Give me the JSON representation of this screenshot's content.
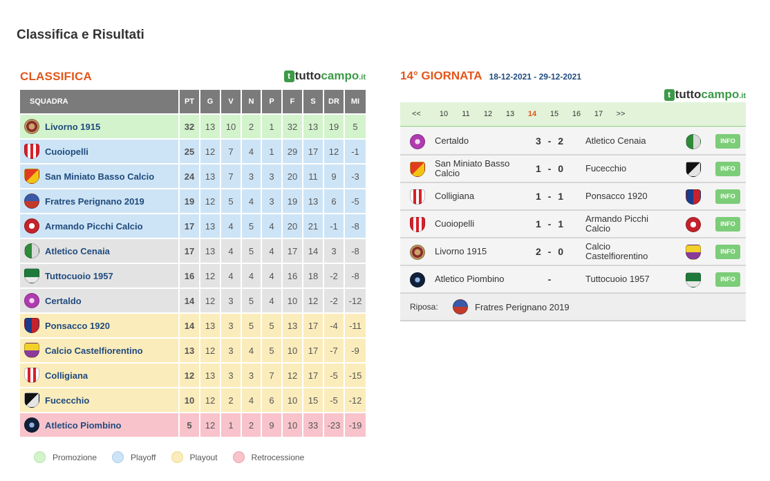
{
  "page_title": "Classifica e Risultati",
  "brand": {
    "part1": "tutto",
    "part2": "campo",
    "tld": ".it",
    "mark": "t"
  },
  "standings": {
    "title": "CLASSIFICA",
    "columns": [
      "SQUADRA",
      "PT",
      "G",
      "V",
      "N",
      "P",
      "F",
      "S",
      "DR",
      "MI"
    ],
    "rows": [
      {
        "team": "Livorno 1915",
        "zone": "promo",
        "crest": "livorno-crest",
        "stats": [
          "32",
          "13",
          "10",
          "2",
          "1",
          "32",
          "13",
          "19",
          "5"
        ]
      },
      {
        "team": "Cuoiopelli",
        "zone": "playoff",
        "crest": "cuoiopelli-crest",
        "stats": [
          "25",
          "12",
          "7",
          "4",
          "1",
          "29",
          "17",
          "12",
          "-1"
        ]
      },
      {
        "team": "San Miniato Basso Calcio",
        "zone": "playoff",
        "crest": "san-miniato-crest",
        "stats": [
          "24",
          "13",
          "7",
          "3",
          "3",
          "20",
          "11",
          "9",
          "-3"
        ]
      },
      {
        "team": "Fratres Perignano 2019",
        "zone": "playoff",
        "crest": "fratres-crest",
        "stats": [
          "19",
          "12",
          "5",
          "4",
          "3",
          "19",
          "13",
          "6",
          "-5"
        ]
      },
      {
        "team": "Armando Picchi Calcio",
        "zone": "playoff",
        "crest": "picchi-crest",
        "stats": [
          "17",
          "13",
          "4",
          "5",
          "4",
          "20",
          "21",
          "-1",
          "-8"
        ]
      },
      {
        "team": "Atletico Cenaia",
        "zone": "mid",
        "crest": "cenaia-crest",
        "stats": [
          "17",
          "13",
          "4",
          "5",
          "4",
          "17",
          "14",
          "3",
          "-8"
        ]
      },
      {
        "team": "Tuttocuoio 1957",
        "zone": "mid",
        "crest": "tuttocuoio-crest",
        "stats": [
          "16",
          "12",
          "4",
          "4",
          "4",
          "16",
          "18",
          "-2",
          "-8"
        ]
      },
      {
        "team": "Certaldo",
        "zone": "mid",
        "crest": "certaldo-crest",
        "stats": [
          "14",
          "12",
          "3",
          "5",
          "4",
          "10",
          "12",
          "-2",
          "-12"
        ]
      },
      {
        "team": "Ponsacco 1920",
        "zone": "playout",
        "crest": "ponsacco-crest",
        "stats": [
          "14",
          "13",
          "3",
          "5",
          "5",
          "13",
          "17",
          "-4",
          "-11"
        ]
      },
      {
        "team": "Calcio Castelfiorentino",
        "zone": "playout",
        "crest": "castelfiorentino-crest",
        "stats": [
          "13",
          "12",
          "3",
          "4",
          "5",
          "10",
          "17",
          "-7",
          "-9"
        ]
      },
      {
        "team": "Colligiana",
        "zone": "playout",
        "crest": "colligiana-crest",
        "stats": [
          "12",
          "13",
          "3",
          "3",
          "7",
          "12",
          "17",
          "-5",
          "-15"
        ]
      },
      {
        "team": "Fucecchio",
        "zone": "playout",
        "crest": "fucecchio-crest",
        "stats": [
          "10",
          "12",
          "2",
          "4",
          "6",
          "10",
          "15",
          "-5",
          "-12"
        ]
      },
      {
        "team": "Atletico Piombino",
        "zone": "retro",
        "crest": "piombino-crest",
        "stats": [
          "5",
          "12",
          "1",
          "2",
          "9",
          "10",
          "33",
          "-23",
          "-19"
        ]
      }
    ],
    "legend": [
      {
        "label": "Promozione",
        "color": "#d3f3cc",
        "border": "#b5e3aa"
      },
      {
        "label": "Playoff",
        "color": "#cde4f6",
        "border": "#a9cdea"
      },
      {
        "label": "Playout",
        "color": "#fbecbb",
        "border": "#eed889"
      },
      {
        "label": "Retrocessione",
        "color": "#f8c3cb",
        "border": "#eca0ab"
      }
    ]
  },
  "giornata": {
    "title": "14° GIORNATA",
    "dates": "18-12-2021 - 29-12-2021",
    "rounds": [
      "<<",
      "10",
      "11",
      "12",
      "13",
      "14",
      "15",
      "16",
      "17",
      ">>"
    ],
    "current_round": "14",
    "matches": [
      {
        "home": "Certaldo",
        "score": "3 - 2",
        "away": "Atletico Cenaia",
        "info": "INFO",
        "home_crest": "certaldo-crest",
        "away_crest": "cenaia-crest"
      },
      {
        "home": "San Miniato Basso Calcio",
        "score": "1 - 0",
        "away": "Fucecchio",
        "info": "INFO",
        "home_crest": "san-miniato-crest",
        "away_crest": "fucecchio-crest"
      },
      {
        "home": "Colligiana",
        "score": "1 - 1",
        "away": "Ponsacco 1920",
        "info": "INFO",
        "home_crest": "colligiana-crest",
        "away_crest": "ponsacco-crest"
      },
      {
        "home": "Cuoiopelli",
        "score": "1 - 1",
        "away": "Armando Picchi Calcio",
        "info": "INFO",
        "home_crest": "cuoiopelli-crest",
        "away_crest": "picchi-crest"
      },
      {
        "home": "Livorno 1915",
        "score": "2 - 0",
        "away": "Calcio Castelfiorentino",
        "info": "INFO",
        "home_crest": "livorno-crest",
        "away_crest": "castelfiorentino-crest"
      },
      {
        "home": "Atletico Piombino",
        "score": "-",
        "away": "Tuttocuoio 1957",
        "info": "INFO",
        "home_crest": "piombino-crest",
        "away_crest": "tuttocuoio-crest"
      }
    ],
    "riposa_label": "Riposa:",
    "riposa_team": "Fratres Perignano 2019",
    "riposa_crest": "fratres-crest"
  },
  "crest_styles": {
    "livorno-crest": "radial-gradient(circle,#c9a46a 0 30%,#8a2a2a 32% 55%,#b8945c 57% 100%)",
    "cuoiopelli-crest": "repeating-linear-gradient(90deg,#d8202a 0 4px,#ffffff 4px 8px)",
    "san-miniato-crest": "linear-gradient(135deg,#e23b22 0 50%,#f3c313 50% 100%)",
    "fratres-crest": "linear-gradient(180deg,#3a5aa8 0 50%,#c43a2a 50% 100%)",
    "picchi-crest": "radial-gradient(circle,#ffffff 0 28%,#c4232b 30% 100%)",
    "cenaia-crest": "linear-gradient(90deg,#2f8a3a 0 50%,#d9d9d9 50% 100%)",
    "tuttocuoio-crest": "linear-gradient(180deg,#1e7a3a 0 60%,#e9e9e9 60% 100%)",
    "certaldo-crest": "radial-gradient(circle,#f3d8f0 0 25%,#b03bb0 27% 100%)",
    "ponsacco-crest": "linear-gradient(90deg,#1a3c8c 0 50%,#c4232b 50% 100%)",
    "castelfiorentino-crest": "linear-gradient(180deg,#f1d12a 0 50%,#8a3b9a 50% 100%)",
    "colligiana-crest": "repeating-linear-gradient(90deg,#ffffff 0 4px,#d8202a 4px 8px)",
    "fucecchio-crest": "linear-gradient(135deg,#111111 0 50%,#e5e5e5 50% 100%)",
    "piombino-crest": "radial-gradient(circle,#8fb3e0 0 25%,#10203a 27% 100%)"
  }
}
